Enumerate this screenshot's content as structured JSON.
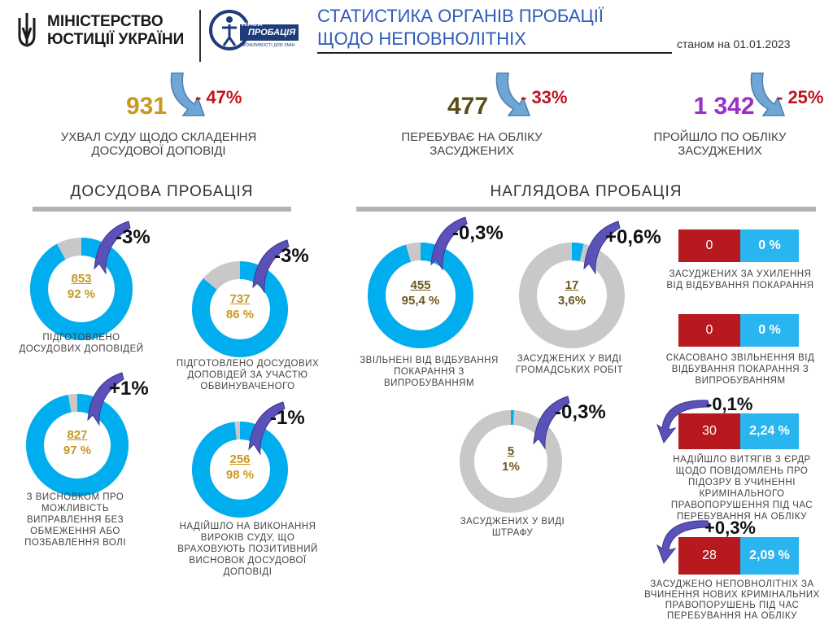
{
  "header": {
    "ministry_line1": "МІНІСТЕРСТВО",
    "ministry_line2": "ЮСТИЦІЇ УКРАЇНИ",
    "probation_logo_text1": "УКРАЇНА",
    "probation_logo_text2": "ПРОБАЦІЯ",
    "probation_logo_text3": "МОЖЛИВОСТІ ДЛЯ ЗМІН",
    "title_line1": "СТАТИСТИКА ОРГАНІВ ПРОБАЦІЇ",
    "title_line2": "ЩОДО НЕПОВНОЛІТНІХ",
    "as_of": "станом на 01.01.2023"
  },
  "kpis": [
    {
      "value": "931",
      "change": "- 47%",
      "caption_line1": "УХВАЛ СУДУ ЩОДО СКЛАДЕННЯ",
      "caption_line2": "ДОСУДОВОЇ ДОПОВІДІ",
      "color": "#c9981f"
    },
    {
      "value": "477",
      "change": "- 33%",
      "caption_line1": "ПЕРЕБУВАЄ НА ОБЛІКУ",
      "caption_line2": "ЗАСУДЖЕНИХ",
      "color": "#5c4e1a"
    },
    {
      "value": "1 342",
      "change": "- 25%",
      "caption_line1": "ПРОЙШЛО ПО ОБЛІКУ",
      "caption_line2": "ЗАСУДЖЕНИХ",
      "color": "#9b30c8"
    }
  ],
  "sections": {
    "pretrial": "ДОСУДОВА  ПРОБАЦІЯ",
    "supervision": "НАГЛЯДОВА   ПРОБАЦІЯ"
  },
  "colors": {
    "donut_fill": "#00aeef",
    "donut_track": "#c8c8c8",
    "gold_text": "#c9981f",
    "olive_text": "#6b5a1e",
    "red_box": "#b7191e",
    "blue_box": "#29b5ef"
  },
  "chart_data": [
    {
      "type": "pie",
      "id": "d1",
      "number": "853",
      "percent_label": "92 %",
      "value": 92,
      "change": "-3%",
      "label": "ПІДГОТОВЛЕНО ДОСУДОВИХ ДОПОВІДЕЙ"
    },
    {
      "type": "pie",
      "id": "d2",
      "number": "737",
      "percent_label": "86 %",
      "value": 86,
      "change": "-3%",
      "label": "ПІДГОТОВЛЕНО ДОСУДОВИХ ДОПОВІДЕЙ ЗА УЧАСТЮ ОБВИНУВАЧЕНОГО"
    },
    {
      "type": "pie",
      "id": "d3",
      "number": "827",
      "percent_label": "97 %",
      "value": 97,
      "change": "+1%",
      "label": "З ВИСНОВКОМ ПРО МОЖЛИВІСТЬ ВИПРАВЛЕННЯ БЕЗ ОБМЕЖЕННЯ АБО ПОЗБАВЛЕННЯ ВОЛІ"
    },
    {
      "type": "pie",
      "id": "d4",
      "number": "256",
      "percent_label": "98 %",
      "value": 98,
      "change": "-1%",
      "label": "НАДІЙШЛО НА ВИКОНАННЯ ВИРОКІВ СУДУ, ЩО ВРАХОВУЮТЬ ПОЗИТИВНИЙ ВИСНОВОК ДОСУДОВОЇ ДОПОВІДІ"
    },
    {
      "type": "pie",
      "id": "d5",
      "number": "455",
      "percent_label": "95,4 %",
      "value": 95.4,
      "change": "-0,3%",
      "label": "ЗВІЛЬНЕНІ ВІД ВІДБУВАННЯ ПОКАРАННЯ З ВИПРОБУВАННЯМ"
    },
    {
      "type": "pie",
      "id": "d6",
      "number": "17",
      "percent_label": "3,6%",
      "value": 3.6,
      "change": "+0,6%",
      "label": "ЗАСУДЖЕНИХ У ВИДІ ГРОМАДСЬКИХ РОБІТ"
    },
    {
      "type": "pie",
      "id": "d7",
      "number": "5",
      "percent_label": "1%",
      "value": 1,
      "change": "-0,3%",
      "label": "ЗАСУДЖЕНИХ У ВИДІ ШТРАФУ"
    }
  ],
  "boxes": [
    {
      "count": "0",
      "percent": "0 %",
      "change": "",
      "label": "ЗАСУДЖЕНИХ ЗА УХИЛЕННЯ ВІД ВІДБУВАННЯ ПОКАРАННЯ"
    },
    {
      "count": "0",
      "percent": "0 %",
      "change": "",
      "label": "СКАСОВАНО ЗВІЛЬНЕННЯ ВІД ВІДБУВАННЯ ПОКАРАННЯ З ВИПРОБУВАННЯМ"
    },
    {
      "count": "30",
      "percent": "2,24 %",
      "change": "-0,1%",
      "label": "НАДІЙШЛО ВИТЯГІВ З ЄРДР ЩОДО ПОВІДОМЛЕНЬ ПРО ПІДОЗРУ В УЧИНЕННІ КРИМІНАЛЬНОГО ПРАВОПОРУШЕННЯ ПІД ЧАС ПЕРЕБУВАННЯ НА ОБЛІКУ"
    },
    {
      "count": "28",
      "percent": "2,09 %",
      "change": "+0,3%",
      "label": "ЗАСУДЖЕНО НЕПОВНОЛІТНІХ ЗА ВЧИНЕННЯ НОВИХ КРИМІНАЛЬНИХ ПРАВОПОРУШЕНЬ ПІД ЧАС ПЕРЕБУВАННЯ НА ОБЛІКУ"
    }
  ]
}
